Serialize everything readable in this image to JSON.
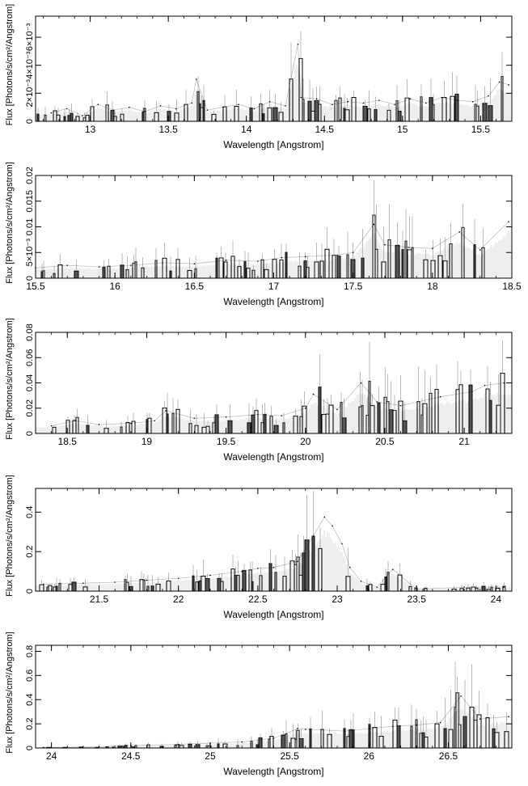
{
  "chart_data": [
    {
      "type": "line",
      "xlabel": "Wavelength [Angstrom]",
      "ylabel": "Flux [Photons/s/cm²/Angstrom]",
      "xlim": [
        12.65,
        15.7
      ],
      "ylim": [
        0,
        0.0075
      ],
      "xticks": [
        13,
        13.5,
        14,
        14.5,
        15,
        15.5
      ],
      "xtick_labels": [
        "13",
        "13.5",
        "14",
        "14.5",
        "15",
        "15.5"
      ],
      "yticks": [
        0,
        0.002,
        0.004,
        0.006,
        0.008
      ],
      "ytick_labels": [
        "0",
        "2×10⁻³",
        "4×10⁻³",
        "6×10⁻³",
        "8×10⁻³"
      ],
      "series": [
        {
          "x": [
            12.75,
            12.85,
            12.95,
            13.05,
            13.15,
            13.25,
            13.35,
            13.45,
            13.55,
            13.65,
            13.68,
            13.75,
            13.85,
            13.95,
            14.05,
            14.15,
            14.25,
            14.33,
            14.35,
            14.45,
            14.55,
            14.65,
            14.75,
            14.85,
            14.95,
            15.05,
            15.15,
            15.25,
            15.35,
            15.45,
            15.55,
            15.62,
            15.68
          ],
          "y": [
            0.0006,
            0.0009,
            0.0004,
            0.0012,
            0.0008,
            0.001,
            0.0007,
            0.0011,
            0.0009,
            0.0013,
            0.003,
            0.0008,
            0.001,
            0.0012,
            0.0009,
            0.0014,
            0.0011,
            0.0055,
            0.0017,
            0.0016,
            0.0012,
            0.0014,
            0.0013,
            0.0015,
            0.0012,
            0.0016,
            0.0013,
            0.0017,
            0.0015,
            0.0014,
            0.0018,
            0.0028,
            0.0026
          ]
        }
      ]
    },
    {
      "type": "line",
      "xlabel": "Wavelength [Angstrom]",
      "ylabel": "Flux [Photons/s/cm²/Angstrom]",
      "xlim": [
        15.5,
        18.5
      ],
      "ylim": [
        0,
        0.02
      ],
      "xticks": [
        15.5,
        16,
        16.5,
        17,
        17.5,
        18,
        18.5
      ],
      "xtick_labels": [
        "15.5",
        "16",
        "16.5",
        "17",
        "17.5",
        "18",
        "18.5"
      ],
      "yticks": [
        0,
        0.005,
        0.01,
        0.015,
        0.02
      ],
      "ytick_labels": [
        "0",
        "5×10⁻³",
        "0.01",
        "0.015",
        "0.02"
      ],
      "series": [
        {
          "x": [
            15.5,
            15.7,
            15.9,
            16.1,
            16.3,
            16.5,
            16.7,
            16.9,
            17.05,
            17.2,
            17.4,
            17.5,
            17.63,
            17.7,
            17.85,
            18.0,
            18.17,
            18.3,
            18.48
          ],
          "y": [
            0.002,
            0.0025,
            0.0022,
            0.0025,
            0.003,
            0.0028,
            0.0035,
            0.0033,
            0.004,
            0.0042,
            0.0045,
            0.005,
            0.0105,
            0.0065,
            0.006,
            0.0058,
            0.009,
            0.0055,
            0.011
          ]
        }
      ]
    },
    {
      "type": "line",
      "xlabel": "Wavelength [Angstrom]",
      "ylabel": "Flux [Photons/s/cm²/Angstrom]",
      "xlim": [
        18.3,
        21.3
      ],
      "ylim": [
        0,
        0.08
      ],
      "xticks": [
        18.5,
        19,
        19.5,
        20,
        20.5,
        21
      ],
      "xtick_labels": [
        "18.5",
        "19",
        "19.5",
        "20",
        "20.5",
        "21"
      ],
      "yticks": [
        0,
        0.02,
        0.04,
        0.06,
        0.08
      ],
      "ytick_labels": [
        "0",
        "0.02",
        "0.04",
        "0.06",
        "0.08"
      ],
      "series": [
        {
          "x": [
            18.4,
            18.55,
            18.7,
            18.9,
            19.05,
            19.12,
            19.3,
            19.5,
            19.7,
            19.85,
            20.0,
            20.05,
            20.2,
            20.35,
            20.45,
            20.6,
            20.85,
            21.05,
            21.13,
            21.25
          ],
          "y": [
            0.006,
            0.01,
            0.007,
            0.008,
            0.01,
            0.018,
            0.012,
            0.013,
            0.015,
            0.014,
            0.02,
            0.031,
            0.019,
            0.04,
            0.025,
            0.022,
            0.029,
            0.033,
            0.038,
            0.04
          ]
        }
      ]
    },
    {
      "type": "line",
      "xlabel": "Wavelength [Angstrom]",
      "ylabel": "Flux [Photons/s/cm²/Angstrom]",
      "xlim": [
        21.1,
        24.1
      ],
      "ylim": [
        0,
        0.52
      ],
      "xticks": [
        21.5,
        22,
        22.5,
        23,
        23.5,
        24
      ],
      "xtick_labels": [
        "21.5",
        "22",
        "22.5",
        "23",
        "23.5",
        "24"
      ],
      "yticks": [
        0,
        0.2,
        0.4
      ],
      "ytick_labels": [
        "0",
        "0.2",
        "0.4"
      ],
      "series": [
        {
          "x": [
            21.15,
            21.4,
            21.6,
            21.8,
            22.0,
            22.2,
            22.4,
            22.5,
            22.6,
            22.75,
            22.85,
            22.92,
            22.97,
            23.03,
            23.08,
            23.15,
            23.25,
            23.35,
            23.5,
            23.8,
            24.05
          ],
          "y": [
            0.035,
            0.04,
            0.045,
            0.055,
            0.065,
            0.08,
            0.1,
            0.115,
            0.12,
            0.15,
            0.28,
            0.375,
            0.33,
            0.24,
            0.12,
            0.05,
            0.02,
            0.11,
            0.01,
            0.02,
            0.02
          ]
        }
      ]
    },
    {
      "type": "line",
      "xlabel": "Wavelength [Angstrom]",
      "ylabel": "Flux [Photons/s/cm²/Angstrom]",
      "xlim": [
        23.9,
        26.9
      ],
      "ylim": [
        0,
        0.85
      ],
      "xticks": [
        24,
        24.5,
        25,
        25.5,
        26,
        26.5
      ],
      "xtick_labels": [
        "24",
        "24.5",
        "25",
        "25.5",
        "26",
        "26.5"
      ],
      "yticks": [
        0,
        0.2,
        0.4,
        0.6,
        0.8
      ],
      "ytick_labels": [
        "0",
        "0.2",
        "0.4",
        "0.6",
        "0.8"
      ],
      "series": [
        {
          "x": [
            23.95,
            24.3,
            24.5,
            24.8,
            25.0,
            25.2,
            25.4,
            25.55,
            25.6,
            25.85,
            26.0,
            26.15,
            26.3,
            26.45,
            26.58,
            26.7,
            26.88
          ],
          "y": [
            0.005,
            0.01,
            0.02,
            0.03,
            0.04,
            0.05,
            0.08,
            0.16,
            0.155,
            0.14,
            0.16,
            0.18,
            0.19,
            0.21,
            0.43,
            0.24,
            0.26
          ]
        }
      ]
    }
  ]
}
